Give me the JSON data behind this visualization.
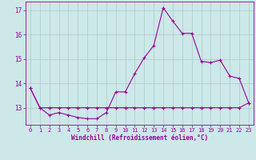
{
  "hours": [
    0,
    1,
    2,
    3,
    4,
    5,
    6,
    7,
    8,
    9,
    10,
    11,
    12,
    13,
    14,
    15,
    16,
    17,
    18,
    19,
    20,
    21,
    22,
    23
  ],
  "windchill": [
    13.8,
    13.0,
    12.7,
    12.8,
    12.7,
    12.6,
    12.55,
    12.55,
    12.8,
    13.65,
    13.65,
    14.4,
    15.05,
    15.55,
    17.1,
    16.55,
    16.05,
    16.05,
    14.9,
    14.85,
    14.95,
    14.3,
    14.2,
    13.2
  ],
  "temperature": [
    13.8,
    13.0,
    13.0,
    13.0,
    13.0,
    13.0,
    13.0,
    13.0,
    13.0,
    13.0,
    13.0,
    13.0,
    13.0,
    13.0,
    13.0,
    13.0,
    13.0,
    13.0,
    13.0,
    13.0,
    13.0,
    13.0,
    13.0,
    13.2
  ],
  "line_color": "#990099",
  "bg_color": "#cce8e8",
  "grid_color": "#aacccc",
  "xlabel": "Windchill (Refroidissement éolien,°C)",
  "ylim": [
    12.3,
    17.35
  ],
  "yticks": [
    13,
    14,
    15,
    16,
    17
  ],
  "xticks": [
    0,
    1,
    2,
    3,
    4,
    5,
    6,
    7,
    8,
    9,
    10,
    11,
    12,
    13,
    14,
    15,
    16,
    17,
    18,
    19,
    20,
    21,
    22,
    23
  ]
}
